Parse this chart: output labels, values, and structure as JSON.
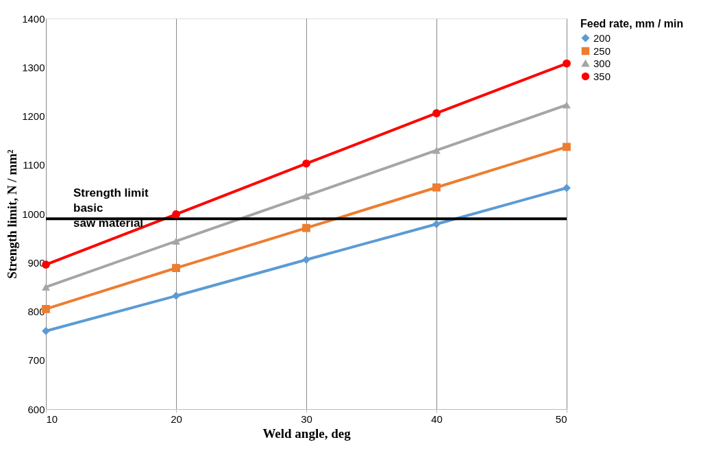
{
  "chart_data": {
    "type": "line",
    "xlabel": "Weld angle, deg",
    "ylabel": "Strength limit, N / mm²",
    "legend_title": "Feed rate, mm / min",
    "x": [
      10,
      20,
      30,
      40,
      50
    ],
    "series": [
      {
        "name": "200",
        "color": "#5b9bd5",
        "marker": "diamond",
        "values": [
          760,
          832,
          906,
          979,
          1053
        ]
      },
      {
        "name": "250",
        "color": "#ed7d31",
        "marker": "square",
        "values": [
          805,
          889,
          971,
          1054,
          1137
        ]
      },
      {
        "name": "300",
        "color": "#a5a5a5",
        "marker": "triangle",
        "values": [
          850,
          944,
          1037,
          1130,
          1223
        ]
      },
      {
        "name": "350",
        "color": "#ff0000",
        "marker": "circle",
        "values": [
          896,
          999,
          1103,
          1206,
          1308
        ]
      }
    ],
    "ref_lines": [
      {
        "axis": "y",
        "value": 990,
        "label": "Strength limit\nbasic\nsaw material",
        "color": "#000000"
      }
    ],
    "xlim": [
      10,
      50
    ],
    "xticks": [
      10,
      20,
      30,
      40,
      50
    ],
    "ylim": [
      600,
      1400
    ],
    "yticks": [
      600,
      700,
      800,
      900,
      1000,
      1100,
      1200,
      1300,
      1400
    ],
    "grid": "x",
    "legend": "right"
  }
}
